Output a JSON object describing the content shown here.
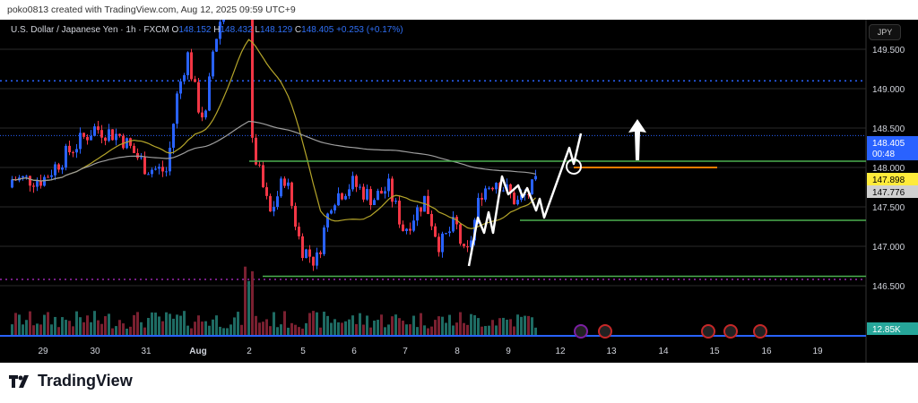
{
  "caption": "poko0813 created with TradingView.com, Aug 12, 2025 09:59 UTC+9",
  "legend": {
    "symbol": "U.S. Dollar / Japanese Yen · 1h · FXCM",
    "o_label": "O",
    "o": "148.152",
    "h_label": "H",
    "h": "148.432",
    "l_label": "L",
    "l": "148.129",
    "c_label": "C",
    "c": "148.405",
    "change": "+0.253 (+0.17%)"
  },
  "currency_button": "JPY",
  "brand": "TradingView",
  "colors": {
    "up": "#2962ff",
    "down": "#f23645",
    "bg": "#000000",
    "green_line": "#4caf50",
    "orange_line": "#f57c00",
    "ma_fast": "#b5a52a",
    "ma_slow": "#9e9e9e"
  },
  "chart_data": {
    "type": "candlestick",
    "price_ticks": [
      "149.500",
      "149.000",
      "148.500",
      "148.000",
      "147.500",
      "147.000",
      "146.500"
    ],
    "price_values": [
      149.5,
      149.0,
      148.5,
      148.0,
      147.5,
      147.0,
      146.5
    ],
    "time_ticks": [
      "29",
      "30",
      "31",
      "Aug",
      "2",
      "5",
      "6",
      "7",
      "8",
      "9",
      "12",
      "13",
      "14",
      "15",
      "16",
      "19"
    ],
    "price_waypoints": [
      [
        0,
        147.85
      ],
      [
        0.5,
        148.2
      ],
      [
        1,
        148.5
      ],
      [
        1.5,
        148.4
      ],
      [
        2,
        148.0
      ],
      [
        2.4,
        147.95
      ],
      [
        2.6,
        148.9
      ],
      [
        2.8,
        149.45
      ],
      [
        3,
        148.8
      ],
      [
        3.15,
        148.6
      ],
      [
        3.3,
        149.5
      ],
      [
        3.6,
        150.3
      ],
      [
        4.0,
        150.4
      ],
      [
        4.05,
        148.3
      ],
      [
        4.4,
        147.4
      ],
      [
        4.7,
        147.9
      ],
      [
        5.0,
        147.0
      ],
      [
        5.3,
        146.8
      ],
      [
        5.6,
        147.6
      ],
      [
        6.0,
        147.8
      ],
      [
        6.4,
        147.6
      ],
      [
        6.7,
        147.75
      ],
      [
        7.0,
        147.2
      ],
      [
        7.4,
        147.6
      ],
      [
        7.7,
        147.0
      ],
      [
        8.0,
        147.3
      ],
      [
        8.2,
        146.8
      ],
      [
        8.5,
        147.7
      ],
      [
        8.8,
        147.85
      ],
      [
        9.2,
        147.55
      ],
      [
        9.6,
        147.8
      ],
      [
        10.0,
        148.2
      ],
      [
        10.2,
        148.4
      ]
    ],
    "last_price": "148.405",
    "countdown": "00:48",
    "ma_fast_value": "147.898",
    "ma_slow_value": "147.776",
    "volume_value": "12.85K",
    "levels": [
      {
        "name": "resistance",
        "price": 148.08
      },
      {
        "name": "support-1",
        "price": 147.33
      },
      {
        "name": "support-2",
        "price": 146.62
      },
      {
        "name": "breakout",
        "price": 148.0
      },
      {
        "name": "dotted-high",
        "price": 149.1
      },
      {
        "name": "dotted-low",
        "price": 146.58
      }
    ]
  }
}
